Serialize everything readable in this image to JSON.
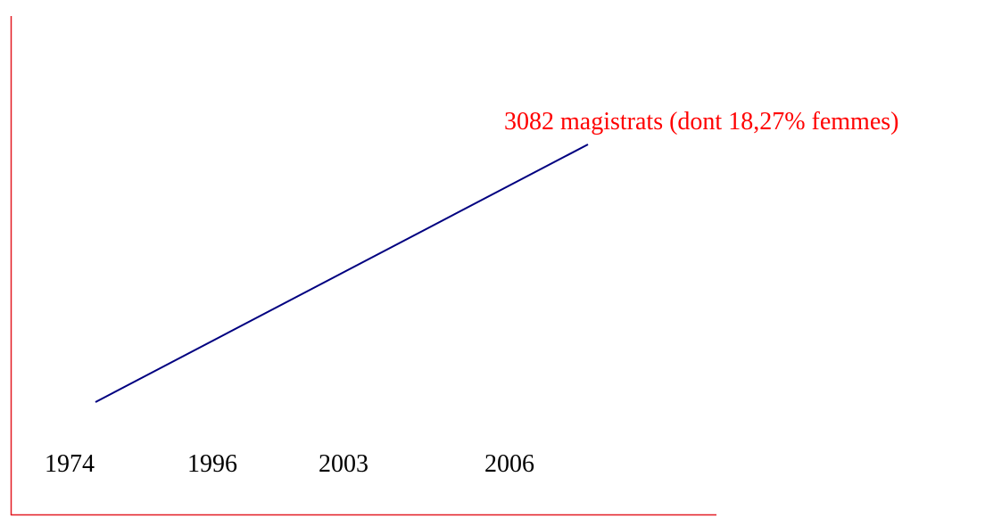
{
  "annotation": "3082 magistrats (dont 18,27% femmes)",
  "years": [
    "1974",
    "1996",
    "2003",
    "2006"
  ]
}
